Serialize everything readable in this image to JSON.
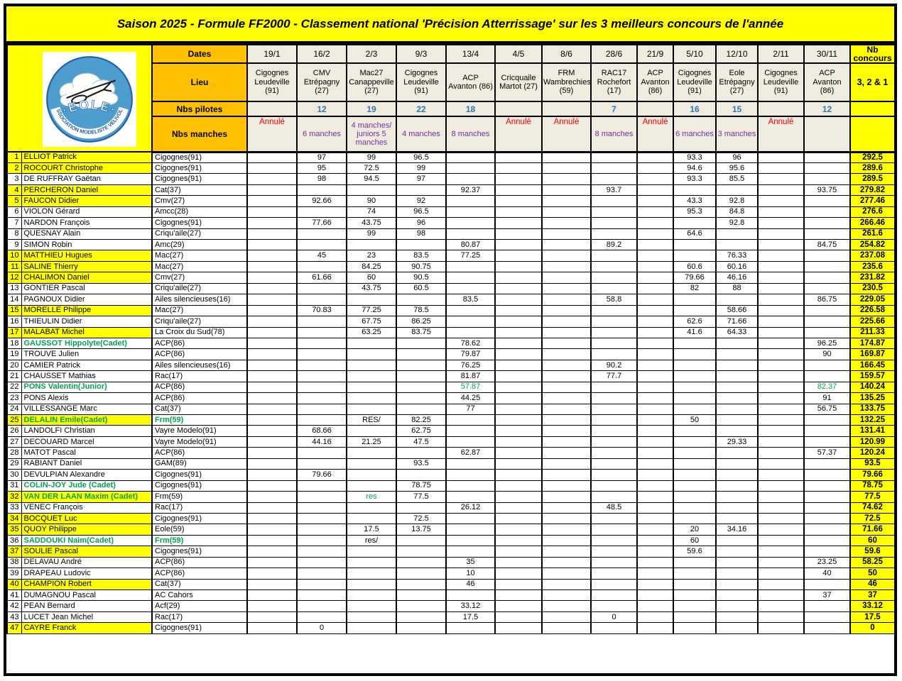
{
  "title": "Saison 2025 - Formule FF2000 - Classement national 'Précision Atterrissage' sur les 3 meilleurs concours de l'année",
  "logo": {
    "club_name": "EOLE",
    "arc_text": "ASSOCIATION MODELISTE VELIVOLE"
  },
  "header": {
    "dates_label": "Dates",
    "lieu_label": "Lieu",
    "pilotes_label": "Nbs  pilotes",
    "manches_label": "Nbs manches",
    "nb_concours_label": "Nb concours",
    "best_label": "3, 2 & 1",
    "columns": [
      {
        "date": "19/1",
        "lieu": "Cigognes Leudeville (91)",
        "pilotes": "",
        "manches": "Annulé",
        "cancelled": true
      },
      {
        "date": "16/2",
        "lieu": "CMV Etrépagny (27)",
        "pilotes": "12",
        "manches": "6 manches",
        "cancelled": false
      },
      {
        "date": "2/3",
        "lieu": "Mac27 Canappeville (27)",
        "pilotes": "19",
        "manches": "4 manches/ juniors 5 manches",
        "cancelled": false
      },
      {
        "date": "9/3",
        "lieu": "Cigognes Leudeville (91)",
        "pilotes": "22",
        "manches": "4 manches",
        "cancelled": false
      },
      {
        "date": "13/4",
        "lieu": "ACP Avanton (86)",
        "pilotes": "18",
        "manches": "8 manches",
        "cancelled": false
      },
      {
        "date": "4/5",
        "lieu": "Cricquaile Martot (27)",
        "pilotes": "",
        "manches": "Annulé",
        "cancelled": true
      },
      {
        "date": "8/6",
        "lieu": "FRM Wambrechies (59)",
        "pilotes": "",
        "manches": "Annulé",
        "cancelled": true
      },
      {
        "date": "28/6",
        "lieu": "RAC17 Rochefort (17)",
        "pilotes": "7",
        "manches": "8 manches",
        "cancelled": false
      },
      {
        "date": "21/9",
        "lieu": "ACP Avanton (86)",
        "pilotes": "",
        "manches": "Annulé",
        "cancelled": true
      },
      {
        "date": "5/10",
        "lieu": "Cigognes Leudeville (91)",
        "pilotes": "16",
        "manches": "6 manches",
        "cancelled": false
      },
      {
        "date": "12/10",
        "lieu": "Eole Etrépagny (27)",
        "pilotes": "15",
        "manches": "3 manches",
        "cancelled": false
      },
      {
        "date": "2/11",
        "lieu": "Cigognes Leudeville (91)",
        "pilotes": "",
        "manches": "Annulé",
        "cancelled": true
      },
      {
        "date": "30/11",
        "lieu": "ACP Avanton (86)",
        "pilotes": "12",
        "manches": "",
        "cancelled": false
      }
    ]
  },
  "rows": [
    {
      "rank": "1",
      "name": "ELLIOT Patrick",
      "club": "Cigognes(91)",
      "hl": true,
      "scores": [
        "",
        "97",
        "99",
        "96.5",
        "",
        "",
        "",
        "",
        "",
        "93.3",
        "96",
        "",
        ""
      ],
      "total": "292.5"
    },
    {
      "rank": "2",
      "name": "ROCOURT Christophe",
      "club": "Cigognes(91)",
      "hl": true,
      "scores": [
        "",
        "95",
        "72.5",
        "99",
        "",
        "",
        "",
        "",
        "",
        "94.6",
        "95.6",
        "",
        ""
      ],
      "total": "289.6"
    },
    {
      "rank": "3",
      "name": "DE RUFFRAY Gaëtan",
      "club": "Cigognes(91)",
      "hl": false,
      "scores": [
        "",
        "98",
        "94.5",
        "97",
        "",
        "",
        "",
        "",
        "",
        "93.3",
        "85.5",
        "",
        ""
      ],
      "total": "289.5"
    },
    {
      "rank": "4",
      "name": "PERCHERON Daniel",
      "club": "Cat(37)",
      "hl": true,
      "scores": [
        "",
        "",
        "",
        "",
        "92.37",
        "",
        "",
        "93.7",
        "",
        "",
        "",
        "",
        "93.75"
      ],
      "total": "279.82"
    },
    {
      "rank": "5",
      "name": "FAUCON Didier",
      "club": "Cmv(27)",
      "hl": true,
      "scores": [
        "",
        "92.66",
        "90",
        "92",
        "",
        "",
        "",
        "",
        "",
        "43.3",
        "92.8",
        "",
        ""
      ],
      "total": "277.46"
    },
    {
      "rank": "6",
      "name": "VIOLON Gérard",
      "club": "Amcc(28)",
      "hl": false,
      "scores": [
        "",
        "",
        "74",
        "96.5",
        "",
        "",
        "",
        "",
        "",
        "95.3",
        "84.8",
        "",
        ""
      ],
      "total": "276.6"
    },
    {
      "rank": "7",
      "name": "NARDON François",
      "club": "Cigognes(91)",
      "hl": false,
      "scores": [
        "",
        "77.66",
        "43.75",
        "96",
        "",
        "",
        "",
        "",
        "",
        "",
        "92.8",
        "",
        ""
      ],
      "total": "266.46"
    },
    {
      "rank": "8",
      "name": "QUESNAY Alain",
      "club": "Criqu'aile(27)",
      "hl": false,
      "scores": [
        "",
        "",
        "99",
        "98",
        "",
        "",
        "",
        "",
        "",
        "64.6",
        "",
        "",
        ""
      ],
      "total": "261.6"
    },
    {
      "rank": "9",
      "name": "SIMON Robin",
      "club": "Amc(29)",
      "hl": false,
      "scores": [
        "",
        "",
        "",
        "",
        "80.87",
        "",
        "",
        "89.2",
        "",
        "",
        "",
        "",
        "84.75"
      ],
      "total": "254.82"
    },
    {
      "rank": "10",
      "name": "MATTHIEU Hugues",
      "club": "Mac(27)",
      "hl": true,
      "scores": [
        "",
        "45",
        "23",
        "83.5",
        "77.25",
        "",
        "",
        "",
        "",
        "",
        "76.33",
        "",
        ""
      ],
      "total": "237.08"
    },
    {
      "rank": "11",
      "name": "SALINE Thierry",
      "club": "Mac(27)",
      "hl": true,
      "scores": [
        "",
        "",
        "84.25",
        "90.75",
        "",
        "",
        "",
        "",
        "",
        "60.6",
        "60.16",
        "",
        ""
      ],
      "total": "235.6"
    },
    {
      "rank": "12",
      "name": "CHALIMON Daniel",
      "club": "Cmv(27)",
      "hl": true,
      "scores": [
        "",
        "61.66",
        "60",
        "90.5",
        "",
        "",
        "",
        "",
        "",
        "79.66",
        "46.16",
        "",
        ""
      ],
      "total": "231.82"
    },
    {
      "rank": "13",
      "name": "GONTIER Pascal",
      "club": "Criqu'aile(27)",
      "hl": false,
      "scores": [
        "",
        "",
        "43.75",
        "60.5",
        "",
        "",
        "",
        "",
        "",
        "82",
        "88",
        "",
        ""
      ],
      "total": "230.5"
    },
    {
      "rank": "14",
      "name": "PAGNOUX Didier",
      "club": "Ailes silencieuses(16)",
      "hl": false,
      "scores": [
        "",
        "",
        "",
        "",
        "83.5",
        "",
        "",
        "58.8",
        "",
        "",
        "",
        "",
        "86.75"
      ],
      "total": "229.05"
    },
    {
      "rank": "15",
      "name": "MORELLE Philippe",
      "club": "Mac(27)",
      "hl": true,
      "scores": [
        "",
        "70.83",
        "77.25",
        "78.5",
        "",
        "",
        "",
        "",
        "",
        "",
        "58.66",
        "",
        ""
      ],
      "total": "226.58"
    },
    {
      "rank": "16",
      "name": "THIEULIN Didier",
      "club": "Criqu'aile(27)",
      "hl": false,
      "scores": [
        "",
        "",
        "67.75",
        "86.25",
        "",
        "",
        "",
        "",
        "",
        "62.6",
        "71.66",
        "",
        ""
      ],
      "total": "225.66"
    },
    {
      "rank": "17",
      "name": "MALABAT Michel",
      "club": "La Croix du Sud(78)",
      "hl": true,
      "scores": [
        "",
        "",
        "63.25",
        "83.75",
        "",
        "",
        "",
        "",
        "",
        "41.6",
        "64.33",
        "",
        ""
      ],
      "total": "211.33"
    },
    {
      "rank": "18",
      "name": "GAUSSOT Hippolyte(Cadet)",
      "club": "ACP(86)",
      "hl": false,
      "ng": true,
      "scores": [
        "",
        "",
        "",
        "",
        "78.62",
        "",
        "",
        "",
        "",
        "",
        "",
        "",
        "96.25"
      ],
      "total": "174.87"
    },
    {
      "rank": "19",
      "name": "TROUVE Julien",
      "club": "ACP(86)",
      "hl": false,
      "scores": [
        "",
        "",
        "",
        "",
        "79.87",
        "",
        "",
        "",
        "",
        "",
        "",
        "",
        "90"
      ],
      "total": "169.87"
    },
    {
      "rank": "20",
      "name": "CAMIER Patrick",
      "club": "Ailes silencieuses(16)",
      "hl": false,
      "scores": [
        "",
        "",
        "",
        "",
        "76.25",
        "",
        "",
        "90.2",
        "",
        "",
        "",
        "",
        ""
      ],
      "total": "166.45"
    },
    {
      "rank": "21",
      "name": "CHAUSSET Mathias",
      "club": "Rac(17)",
      "hl": false,
      "scores": [
        "",
        "",
        "",
        "",
        "81.87",
        "",
        "",
        "77.7",
        "",
        "",
        "",
        "",
        ""
      ],
      "total": "159.57"
    },
    {
      "rank": "22",
      "name": "PONS Valentin(Junior)",
      "club": "ACP(86)",
      "hl": false,
      "ng": true,
      "gc": [
        4,
        12
      ],
      "scores": [
        "",
        "",
        "",
        "",
        "57.87",
        "",
        "",
        "",
        "",
        "",
        "",
        "",
        "82.37"
      ],
      "total": "140.24"
    },
    {
      "rank": "23",
      "name": "PONS Alexis",
      "club": "ACP(86)",
      "hl": false,
      "scores": [
        "",
        "",
        "",
        "",
        "44.25",
        "",
        "",
        "",
        "",
        "",
        "",
        "",
        "91"
      ],
      "total": "135.25"
    },
    {
      "rank": "24",
      "name": "VILLESSANGE Marc",
      "club": "Cat(37)",
      "hl": false,
      "scores": [
        "",
        "",
        "",
        "",
        "77",
        "",
        "",
        "",
        "",
        "",
        "",
        "",
        "56.75"
      ],
      "total": "133.75"
    },
    {
      "rank": "25",
      "name": "DELALIN Emile(Cadet)",
      "club": "Frm(59)",
      "hl": true,
      "ng": true,
      "cg": true,
      "scores": [
        "",
        "",
        "RES/",
        "82.25",
        "",
        "",
        "",
        "",
        "",
        "50",
        "",
        "",
        ""
      ],
      "total": "132.25"
    },
    {
      "rank": "26",
      "name": "LANDOLFI Christian",
      "club": "Vayre Modelo(91)",
      "hl": false,
      "scores": [
        "",
        "68.66",
        "",
        "62.75",
        "",
        "",
        "",
        "",
        "",
        "",
        "",
        "",
        ""
      ],
      "total": "131.41"
    },
    {
      "rank": "27",
      "name": "DECOUARD Marcel",
      "club": "Vayre Modelo(91)",
      "hl": false,
      "scores": [
        "",
        "44.16",
        "21.25",
        "47.5",
        "",
        "",
        "",
        "",
        "",
        "",
        "29.33",
        "",
        ""
      ],
      "total": "120.99"
    },
    {
      "rank": "28",
      "name": "MATOT Pascal",
      "club": "ACP(86)",
      "hl": false,
      "scores": [
        "",
        "",
        "",
        "",
        "62.87",
        "",
        "",
        "",
        "",
        "",
        "",
        "",
        "57.37"
      ],
      "total": "120.24"
    },
    {
      "rank": "29",
      "name": "RABIANT Daniel",
      "club": "GAM(89)",
      "hl": false,
      "scores": [
        "",
        "",
        "",
        "93.5",
        "",
        "",
        "",
        "",
        "",
        "",
        "",
        "",
        ""
      ],
      "total": "93.5"
    },
    {
      "rank": "30",
      "name": "DEVULPIAN Alexandre",
      "club": "Cigognes(91)",
      "hl": false,
      "scores": [
        "",
        "79.66",
        "",
        "",
        "",
        "",
        "",
        "",
        "",
        "",
        "",
        "",
        ""
      ],
      "total": "79.66"
    },
    {
      "rank": "31",
      "name": "COLIN-JOY Jude (Cadet)",
      "club": "Cigognes(91)",
      "hl": false,
      "ng": true,
      "scores": [
        "",
        "",
        "",
        "78.75",
        "",
        "",
        "",
        "",
        "",
        "",
        "",
        "",
        ""
      ],
      "total": "78.75"
    },
    {
      "rank": "32",
      "name": "VAN DER LAAN Maxim (Cadet)",
      "club": "Frm(59)",
      "hl": true,
      "ng": true,
      "gc": [
        2
      ],
      "scores": [
        "",
        "",
        "res",
        "77.5",
        "",
        "",
        "",
        "",
        "",
        "",
        "",
        "",
        ""
      ],
      "total": "77.5"
    },
    {
      "rank": "33",
      "name": "VENEC François",
      "club": "Rac(17)",
      "hl": false,
      "scores": [
        "",
        "",
        "",
        "",
        "26.12",
        "",
        "",
        "48.5",
        "",
        "",
        "",
        "",
        ""
      ],
      "total": "74.62"
    },
    {
      "rank": "34",
      "name": "BOCQUET Luc",
      "club": "Cigognes(91)",
      "hl": true,
      "scores": [
        "",
        "",
        "",
        "72.5",
        "",
        "",
        "",
        "",
        "",
        "",
        "",
        "",
        ""
      ],
      "total": "72.5"
    },
    {
      "rank": "35",
      "name": "QUOY Philippe",
      "club": "Eole(59)",
      "hl": true,
      "scores": [
        "",
        "",
        "17.5",
        "13.75",
        "",
        "",
        "",
        "",
        "",
        "20",
        "34.16",
        "",
        ""
      ],
      "total": "71.66"
    },
    {
      "rank": "36",
      "name": "SADDOUKI Naim(Cadet)",
      "club": "Frm(59)",
      "hl": false,
      "ng": true,
      "cg": true,
      "scores": [
        "",
        "",
        "res/",
        "",
        "",
        "",
        "",
        "",
        "",
        "60",
        "",
        "",
        ""
      ],
      "total": "60"
    },
    {
      "rank": "37",
      "name": "SOULIE Pascal",
      "club": "Cigognes(91)",
      "hl": true,
      "scores": [
        "",
        "",
        "",
        "",
        "",
        "",
        "",
        "",
        "",
        "59.6",
        "",
        "",
        ""
      ],
      "total": "59.6"
    },
    {
      "rank": "38",
      "name": "DELAVAU André",
      "club": "ACP(86)",
      "hl": false,
      "scores": [
        "",
        "",
        "",
        "",
        "35",
        "",
        "",
        "",
        "",
        "",
        "",
        "",
        "23.25"
      ],
      "total": "58.25"
    },
    {
      "rank": "39",
      "name": "DRAPEAU Ludovic",
      "club": "ACP(86)",
      "hl": false,
      "scores": [
        "",
        "",
        "",
        "",
        "10",
        "",
        "",
        "",
        "",
        "",
        "",
        "",
        "40"
      ],
      "total": "50"
    },
    {
      "rank": "40",
      "name": "CHAMPION Robert",
      "club": "Cat(37)",
      "hl": true,
      "scores": [
        "",
        "",
        "",
        "",
        "46",
        "",
        "",
        "",
        "",
        "",
        "",
        "",
        ""
      ],
      "total": "46"
    },
    {
      "rank": "41",
      "name": "DUMAGNOU Pascal",
      "club": "AC Cahors",
      "hl": false,
      "scores": [
        "",
        "",
        "",
        "",
        "",
        "",
        "",
        "",
        "",
        "",
        "",
        "",
        "37"
      ],
      "total": "37"
    },
    {
      "rank": "42",
      "name": "PEAN Bernard",
      "club": "Acf(29)",
      "hl": false,
      "scores": [
        "",
        "",
        "",
        "",
        "33.12",
        "",
        "",
        "",
        "",
        "",
        "",
        "",
        ""
      ],
      "total": "33.12"
    },
    {
      "rank": "43",
      "name": "LUCET Jean Michel",
      "club": "Rac(17)",
      "hl": false,
      "scores": [
        "",
        "",
        "",
        "",
        "17.5",
        "",
        "",
        "0",
        "",
        "",
        "",
        "",
        ""
      ],
      "total": "17.5"
    },
    {
      "rank": "47",
      "name": "CAYRE Franck",
      "club": "Cigognes(91)",
      "hl": true,
      "scores": [
        "",
        "0",
        "",
        "",
        "",
        "",
        "",
        "",
        "",
        "",
        "",
        "",
        ""
      ],
      "total": "0"
    }
  ],
  "colors": {
    "highlight": "#FFFF00",
    "header_orange": "#FFC000",
    "header_cream": "#F0EBDF",
    "pilot_count_blue": "#2E75B6",
    "manches_purple": "#7030A0",
    "cancelled_red": "#FF0000",
    "junior_green": "#00A550",
    "logo_blue": "#4D9ECF",
    "logo_dark_blue": "#1F5FA8"
  }
}
